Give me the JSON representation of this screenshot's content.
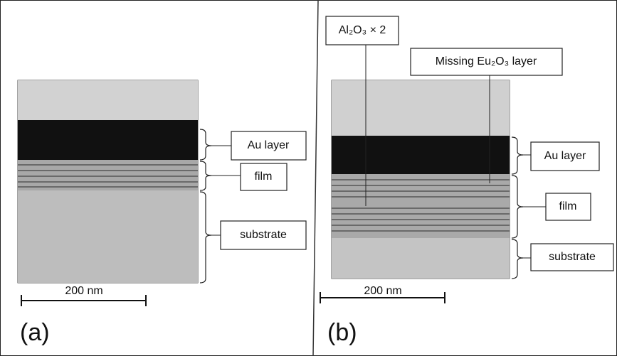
{
  "panels": [
    {
      "label": "(a)",
      "scale_bar": "200 nm",
      "layers": [
        "Au layer",
        "film",
        "substrate"
      ]
    },
    {
      "label": "(b)",
      "scale_bar": "200 nm",
      "layers": [
        "Au layer",
        "film",
        "substrate"
      ],
      "annotations": [
        "Al₂O₃ × 2",
        "Missing Eu₂O₃ layer"
      ]
    }
  ]
}
